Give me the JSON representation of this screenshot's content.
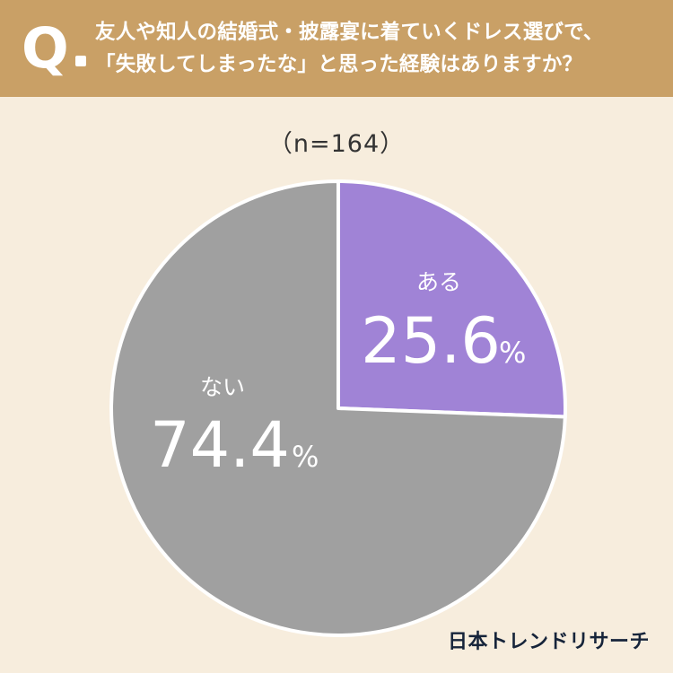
{
  "header": {
    "q_label": "Q",
    "question_line1": "友人や知人の結婚式・披露宴に着ていくドレス選びで、",
    "question_line2": "「失敗してしまったな」と思った経験はありますか？"
  },
  "sample_size": "（n=164）",
  "brand": "日本トレンドリサーチ",
  "colors": {
    "yes": "#a083d6",
    "no": "#a0a0a0",
    "header": "#c9a066",
    "background": "#f7eddd"
  },
  "chart_data": {
    "type": "pie",
    "title": "",
    "slices": [
      {
        "label": "ある",
        "value": 25.6,
        "display": "25.6",
        "unit": "%",
        "color": "#a083d6"
      },
      {
        "label": "ない",
        "value": 74.4,
        "display": "74.4",
        "unit": "%",
        "color": "#a0a0a0"
      }
    ]
  }
}
